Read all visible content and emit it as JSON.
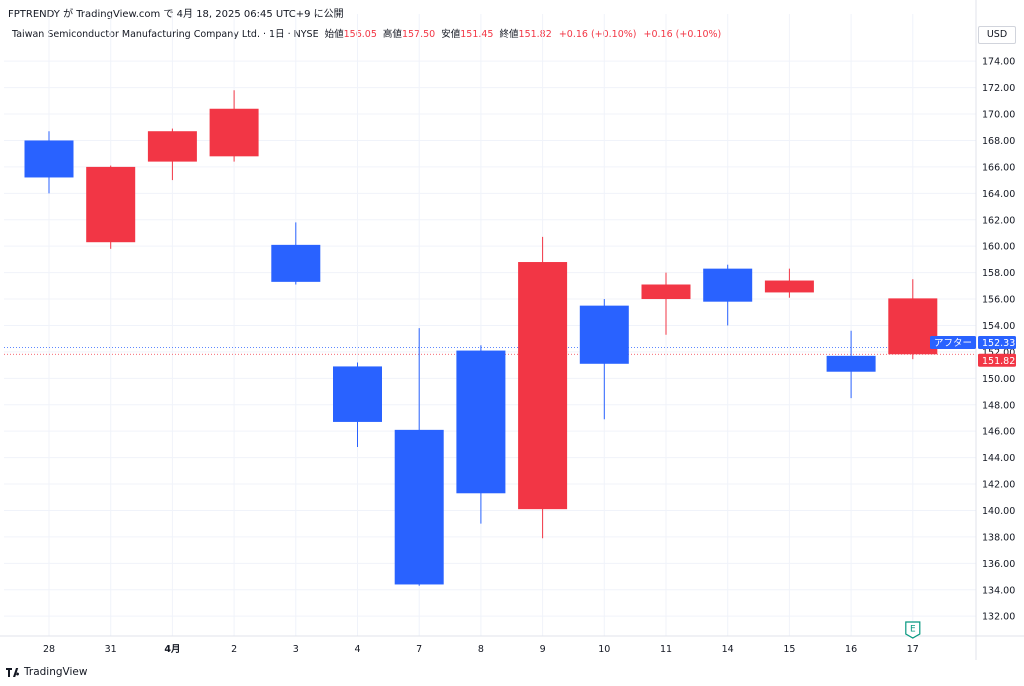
{
  "header": {
    "publisher_line": "FPTRENDY が TradingView.com で 4月 18, 2025 06:45 UTC+9 に公開"
  },
  "info": {
    "symbol_line": "Taiwan Semiconductor Manufacturing Company Ltd. · 1日 · NYSE",
    "open_label": "始値",
    "open_value": "156.05",
    "high_label": "高値",
    "high_value": "157.50",
    "low_label": "安値",
    "low_value": "151.45",
    "close_label": "終値",
    "close_value": "151.82",
    "change_1": "+0.16 (+0.10%)",
    "change_2": "+0.16 (+0.10%)"
  },
  "currency": "USD",
  "footer": {
    "brand": "TradingView"
  },
  "colors": {
    "up": "#2962ff",
    "down": "#f23645",
    "grid": "#f0f3fa",
    "axis_text": "#131722"
  },
  "chart_data": {
    "type": "candlestick",
    "up_color_meaning": "blue = close above open",
    "down_color_meaning": "red = close below open",
    "categories": [
      "28",
      "31",
      "4月",
      "2",
      "3",
      "4",
      "7",
      "8",
      "9",
      "10",
      "11",
      "14",
      "15",
      "16",
      "17"
    ],
    "candles": [
      {
        "open": 165.2,
        "high": 168.7,
        "low": 164.0,
        "close": 168.0
      },
      {
        "open": 166.0,
        "high": 166.1,
        "low": 159.8,
        "close": 160.3
      },
      {
        "open": 168.7,
        "high": 168.9,
        "low": 165.0,
        "close": 166.4
      },
      {
        "open": 170.4,
        "high": 171.8,
        "low": 166.4,
        "close": 166.8
      },
      {
        "open": 157.3,
        "high": 161.8,
        "low": 157.1,
        "close": 160.1
      },
      {
        "open": 146.7,
        "high": 151.2,
        "low": 144.8,
        "close": 150.9
      },
      {
        "open": 134.4,
        "high": 153.8,
        "low": 134.3,
        "close": 146.1
      },
      {
        "open": 141.3,
        "high": 152.5,
        "low": 139.0,
        "close": 152.1
      },
      {
        "open": 158.8,
        "high": 160.7,
        "low": 137.9,
        "close": 140.1
      },
      {
        "open": 151.1,
        "high": 156.0,
        "low": 146.9,
        "close": 155.5
      },
      {
        "open": 157.1,
        "high": 158.0,
        "low": 153.3,
        "close": 156.0
      },
      {
        "open": 155.8,
        "high": 158.6,
        "low": 154.0,
        "close": 158.3
      },
      {
        "open": 157.4,
        "high": 158.3,
        "low": 156.1,
        "close": 156.5
      },
      {
        "open": 150.5,
        "high": 153.6,
        "low": 148.5,
        "close": 151.7
      },
      {
        "open": 156.05,
        "high": 157.5,
        "low": 151.45,
        "close": 151.82
      }
    ],
    "ylim": [
      130.5,
      175.3
    ],
    "yticks": [
      132,
      134,
      136,
      138,
      140,
      142,
      144,
      146,
      148,
      150,
      152,
      154,
      156,
      158,
      160,
      162,
      164,
      166,
      168,
      170,
      172,
      174
    ],
    "ytick_labels": [
      "132.00",
      "134.00",
      "136.00",
      "138.00",
      "140.00",
      "142.00",
      "144.00",
      "146.00",
      "148.00",
      "150.00",
      "152.00",
      "154.00",
      "156.00",
      "158.00",
      "160.00",
      "162.00",
      "164.00",
      "166.00",
      "168.00",
      "170.00",
      "172.00",
      "174.00"
    ],
    "price_lines": [
      {
        "label": "アフター",
        "value": 152.33,
        "value_label": "152.33",
        "color": "#2962ff"
      },
      {
        "value": 151.82,
        "value_label": "151.82",
        "color": "#f23645"
      }
    ],
    "event_marker": {
      "label": "E",
      "category_index": 14,
      "color": "#089981"
    },
    "grid": true
  }
}
